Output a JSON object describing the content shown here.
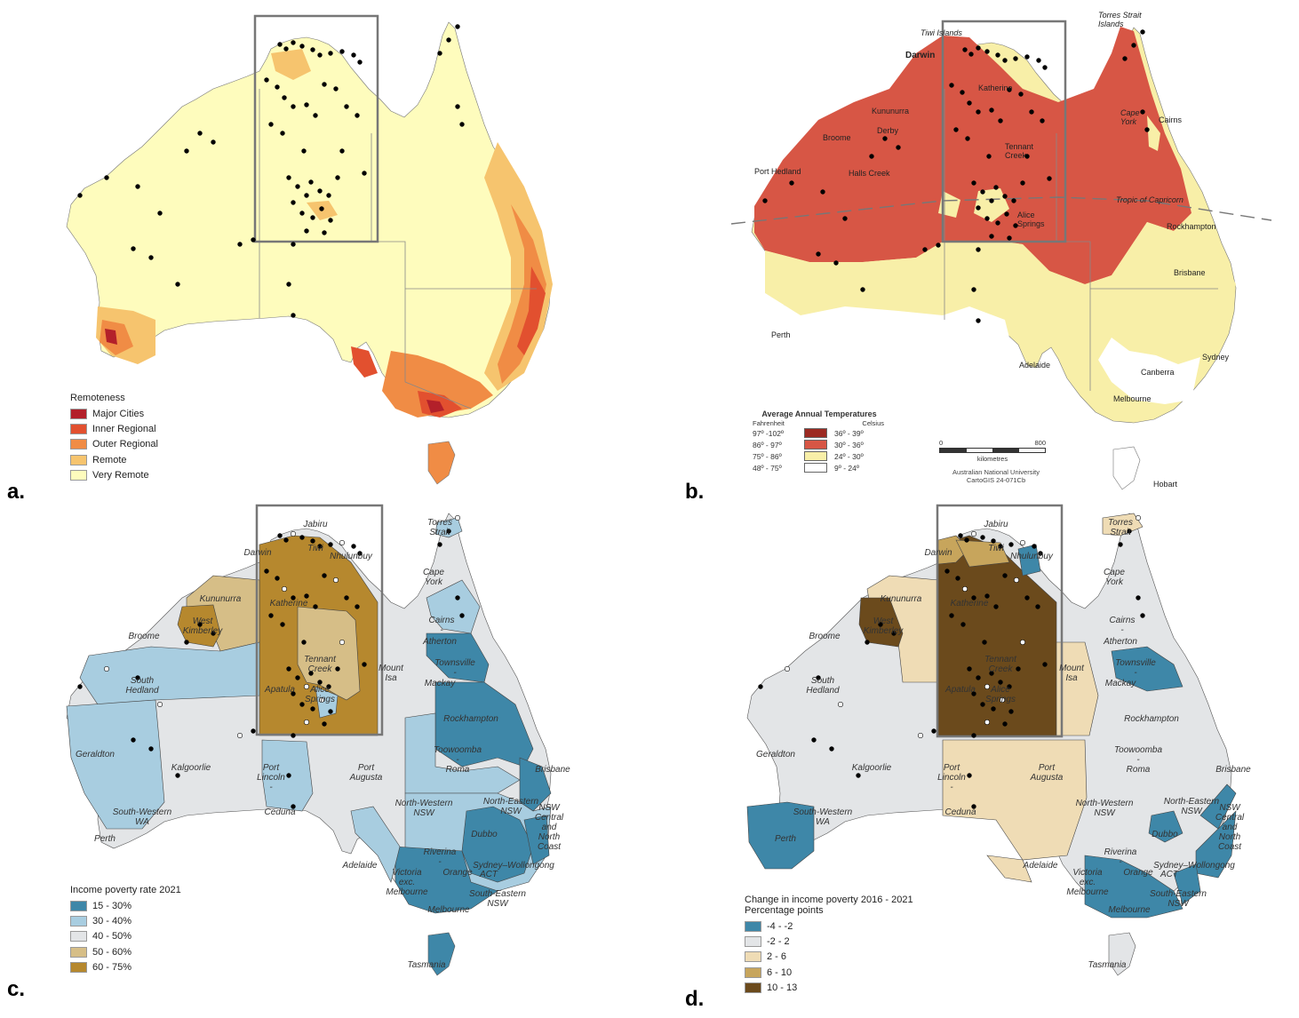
{
  "panels": {
    "a": {
      "letter": "a.",
      "legend_title": "Remoteness",
      "legend": [
        {
          "label": "Major Cities",
          "color": "#b3202a"
        },
        {
          "label": "Inner Regional",
          "color": "#e2502f"
        },
        {
          "label": "Outer Regional",
          "color": "#f08c45"
        },
        {
          "label": "Remote",
          "color": "#f6c46e"
        },
        {
          "label": "Very Remote",
          "color": "#fefcbd"
        }
      ]
    },
    "b": {
      "letter": "b.",
      "legend_title": "Average Annual Temperatures",
      "col_f": "Fahrenheit",
      "col_c": "Celsius",
      "legend": [
        {
          "f": "97º -102º",
          "c": "36º - 39º",
          "color": "#9c2a22"
        },
        {
          "f": "86º - 97º",
          "c": "30º - 36º",
          "color": "#d75645"
        },
        {
          "f": "75º - 86º",
          "c": "24º - 30º",
          "color": "#f8efa8"
        },
        {
          "f": "48º - 75º",
          "c": "9º - 24º",
          "color": "#ffffff"
        }
      ],
      "scale_zero": "0",
      "scale_max": "800",
      "scale_unit": "kilometres",
      "credit_line1": "Australian National University",
      "credit_line2": "CartoGIS 24-071Cb",
      "places": [
        "Torres Strait Islands",
        "Tiwi Islands",
        "Darwin",
        "Katherine",
        "Kununurra",
        "Derby",
        "Broome",
        "Halls Creek",
        "Port Hedland",
        "Tennant Creek",
        "Alice Springs",
        "Cape York",
        "Cairns",
        "Tropic of Capricorn",
        "Rockhampton",
        "Brisbane",
        "Perth",
        "Adelaide",
        "Canberra",
        "Sydney",
        "Melbourne",
        "Hobart"
      ]
    },
    "c": {
      "letter": "c.",
      "legend_title": "Income poverty rate 2021",
      "legend": [
        {
          "label": "15 - 30%",
          "color": "#3e87a8"
        },
        {
          "label": "30 - 40%",
          "color": "#a8cde0"
        },
        {
          "label": "40 - 50%",
          "color": "#e3e5e7"
        },
        {
          "label": "50 - 60%",
          "color": "#d6be87"
        },
        {
          "label": "60 - 75%",
          "color": "#b6882e"
        }
      ]
    },
    "d": {
      "letter": "d.",
      "legend_title": "Change in income poverty 2016 - 2021",
      "legend_subtitle": "Percentage points",
      "legend": [
        {
          "label": "-4 - -2",
          "color": "#3e87a8"
        },
        {
          "label": "-2 - 2",
          "color": "#e3e5e7"
        },
        {
          "label": "2 - 6",
          "color": "#efdcb5"
        },
        {
          "label": "6 - 10",
          "color": "#c7a55c"
        },
        {
          "label": "10 - 13",
          "color": "#6b4a1c"
        }
      ]
    },
    "region_labels": [
      "Jabiru",
      "Torres Strait",
      "Darwin",
      "Tiwi",
      "Nhulunbuy",
      "Cape York",
      "Kununurra",
      "Katherine",
      "Cairns",
      "Atherton",
      "West Kimberley",
      "Broome",
      "Tennant Creek",
      "Mount Isa",
      "Townsville",
      "Mackay",
      "South Hedland",
      "Apatula",
      "Alice Springs",
      "Rockhampton",
      "Toowoomba",
      "Roma",
      "Brisbane",
      "Geraldton",
      "Kalgoorlie",
      "Port Lincoln",
      "Ceduna",
      "Port Augusta",
      "North-Western NSW",
      "North-Eastern NSW",
      "NSW Central and North Coast",
      "Dubbo",
      "South-Western WA",
      "Perth",
      "Riverina",
      "Orange",
      "ACT",
      "Sydney–Wollongong",
      "Adelaide",
      "Victoria exc. Melbourne",
      "South-Eastern NSW",
      "Melbourne",
      "Tasmania"
    ]
  }
}
